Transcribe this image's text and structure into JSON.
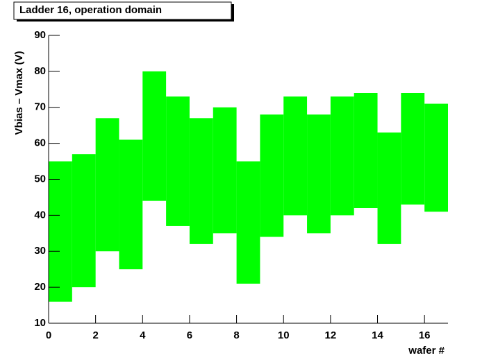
{
  "chart_data": {
    "type": "range-bar",
    "title": "Ladder 16, operation domain",
    "x_label": "wafer #",
    "y_label": "Vbias – Vmax (V)",
    "bins": [
      0,
      1,
      2,
      3,
      4,
      5,
      6,
      7,
      8,
      9,
      10,
      11,
      12,
      13,
      14,
      15,
      16,
      17
    ],
    "lower": [
      16,
      20,
      30,
      25,
      44,
      37,
      32,
      35,
      21,
      34,
      40,
      35,
      40,
      42,
      32,
      43,
      41
    ],
    "upper": [
      55,
      57,
      67,
      61,
      80,
      73,
      67,
      70,
      55,
      68,
      73,
      68,
      73,
      74,
      63,
      74,
      71
    ],
    "color": "#00ff00",
    "xlim": [
      0,
      17
    ],
    "xticks": [
      0,
      2,
      4,
      6,
      8,
      10,
      12,
      14,
      16
    ],
    "ylim": [
      10,
      90
    ],
    "yticks": [
      10,
      20,
      30,
      40,
      50,
      60,
      70,
      80,
      90
    ]
  }
}
